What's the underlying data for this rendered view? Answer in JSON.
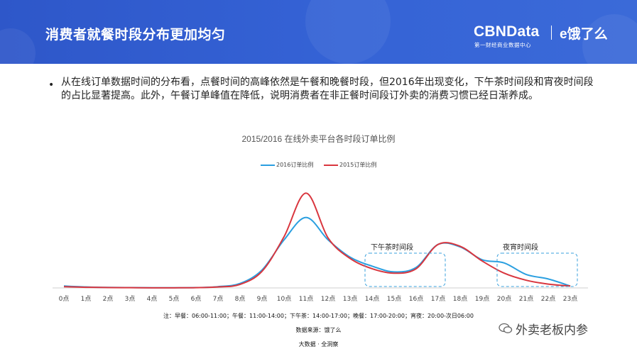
{
  "header": {
    "title": "消费者就餐时段分布更加均匀",
    "logo": "CBNData",
    "partner": "饿了么",
    "logo_subtitle": "第一财经商业数据中心",
    "background": "#3461d4"
  },
  "bullet": "从在线订单数据时间的分布看，点餐时间的高峰依然是午餐和晚餐时段，但2016年出现变化，下午茶时间段和宵夜时间段的占比显著提高。此外，午餐订单峰值在降低，说明消费者在非正餐时间段订外卖的消费习惯已经日渐养成。",
  "chart_data": {
    "type": "line",
    "title": "2015/2016  在线外卖平台各时段订单比例",
    "categories": [
      "0点",
      "1点",
      "2点",
      "3点",
      "4点",
      "5点",
      "6点",
      "7点",
      "8点",
      "9点",
      "10点",
      "11点",
      "12点",
      "13点",
      "14点",
      "15点",
      "16点",
      "17点",
      "18点",
      "19点",
      "20点",
      "21点",
      "22点",
      "23点"
    ],
    "series": [
      {
        "name": "2016订单比例",
        "color": "#2a9fe0",
        "values": [
          0.3,
          0.15,
          0.08,
          0.05,
          0.03,
          0.03,
          0.05,
          0.2,
          0.7,
          2.8,
          7.5,
          11.0,
          7.5,
          4.8,
          3.4,
          2.5,
          3.2,
          6.8,
          6.4,
          4.4,
          3.9,
          2.1,
          1.4,
          0.3
        ]
      },
      {
        "name": "2015订单比例",
        "color": "#d9363e",
        "values": [
          0.2,
          0.1,
          0.06,
          0.04,
          0.02,
          0.02,
          0.04,
          0.15,
          0.55,
          2.6,
          8.0,
          14.8,
          7.8,
          4.6,
          3.0,
          2.3,
          3.0,
          6.8,
          6.5,
          4.2,
          2.3,
          1.2,
          0.6,
          0.3
        ]
      }
    ],
    "annotations": [
      {
        "label": "下午茶时间段",
        "from": 14,
        "to": 17
      },
      {
        "label": "夜宵时间段",
        "from": 20,
        "to": 23
      }
    ],
    "legend_position": "top-center",
    "grid": false
  },
  "notes": {
    "meal_times": "注：早餐：06:00-11:00；午餐：11:00-14:00；下午茶：14:00-17:00；晚餐：17:00-20:00；宵夜：20:00-次日06:00",
    "source": "数据来源：饿了么",
    "credit": "大数据 · 全洞察"
  },
  "watermark": "外卖老板内参"
}
